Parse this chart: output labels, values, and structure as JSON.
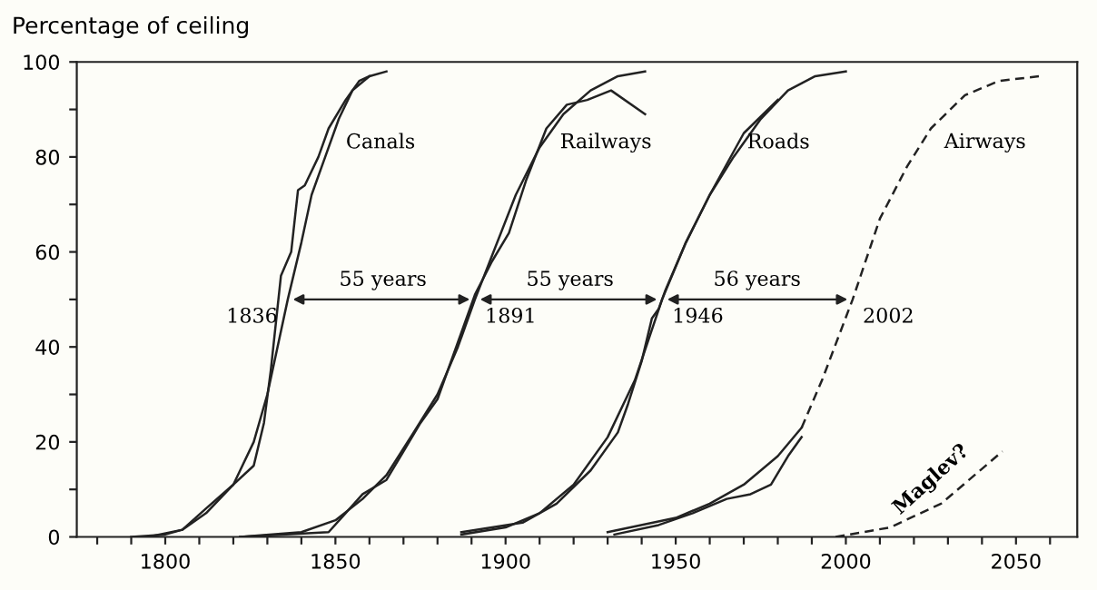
{
  "chart_data": {
    "type": "line",
    "ylabel": "Percentage of ceiling",
    "xlim": [
      1774,
      2068
    ],
    "ylim": [
      0,
      100
    ],
    "xticks": [
      {
        "value": 1780,
        "label": null
      },
      {
        "value": 1790,
        "label": null
      },
      1800,
      {
        "value": 1810,
        "label": null
      },
      {
        "value": 1820,
        "label": null
      },
      {
        "value": 1830,
        "label": null
      },
      {
        "value": 1840,
        "label": null
      },
      1850,
      {
        "value": 1860,
        "label": null
      },
      {
        "value": 1870,
        "label": null
      },
      {
        "value": 1880,
        "label": null
      },
      {
        "value": 1890,
        "label": null
      },
      1900,
      {
        "value": 1910,
        "label": null
      },
      {
        "value": 1920,
        "label": null
      },
      {
        "value": 1930,
        "label": null
      },
      {
        "value": 1940,
        "label": null
      },
      1950,
      {
        "value": 1960,
        "label": null
      },
      {
        "value": 1970,
        "label": null
      },
      {
        "value": 1980,
        "label": null
      },
      {
        "value": 1990,
        "label": null
      },
      2000,
      {
        "value": 2010,
        "label": null
      },
      {
        "value": 2020,
        "label": null
      },
      {
        "value": 2030,
        "label": null
      },
      {
        "value": 2040,
        "label": null
      },
      2050,
      {
        "value": 2060,
        "label": null
      }
    ],
    "yticks": [
      0,
      {
        "value": 10,
        "label": null
      },
      20,
      {
        "value": 30,
        "label": null
      },
      40,
      {
        "value": 50,
        "label": null
      },
      60,
      {
        "value": 70,
        "label": null
      },
      80,
      {
        "value": 90,
        "label": null
      },
      100
    ],
    "grid": false,
    "legend": false,
    "marker": "none",
    "line_style": "solid",
    "series": [
      {
        "color": "#222222",
        "x": [
          1790,
          1800,
          1805,
          1812,
          1820,
          1826,
          1830,
          1833,
          1836,
          1840,
          1843,
          1847,
          1851,
          1855,
          1860,
          1865
        ],
        "values": [
          0,
          0.5,
          1.5,
          5,
          11,
          20,
          30,
          40,
          50,
          62,
          72,
          80,
          88,
          94,
          97,
          98
        ]
      },
      {
        "color": "#222222",
        "x": [
          1795,
          1805,
          1812,
          1820,
          1826,
          1829,
          1831,
          1834,
          1837,
          1839,
          1841,
          1845,
          1848,
          1853,
          1857,
          1860
        ],
        "values": [
          0,
          1.5,
          6,
          11,
          15,
          24,
          35,
          55,
          60,
          73,
          74,
          80,
          86,
          92,
          96,
          97
        ]
      },
      {
        "color": "#222222",
        "x": [
          1822,
          1840,
          1850,
          1858,
          1865,
          1873,
          1880,
          1886,
          1891,
          1897,
          1903,
          1910,
          1917,
          1925,
          1933,
          1941
        ],
        "values": [
          0,
          1,
          3.5,
          8,
          13,
          22,
          30,
          40,
          50,
          61,
          72,
          82,
          89,
          94,
          97,
          98
        ]
      },
      {
        "color": "#222222",
        "x": [
          1822,
          1848,
          1853,
          1858,
          1865,
          1870,
          1875,
          1880,
          1886,
          1891,
          1896,
          1901,
          1906,
          1912,
          1918,
          1924,
          1931,
          1941
        ],
        "values": [
          0,
          1,
          5,
          9,
          12,
          18,
          24,
          29,
          41,
          51,
          58,
          64,
          75,
          86,
          91,
          92,
          94,
          89
        ]
      },
      {
        "color": "#222222",
        "x": [
          1887,
          1900,
          1910,
          1920,
          1930,
          1938,
          1946,
          1953,
          1960,
          1967,
          1975,
          1983,
          1991,
          2000
        ],
        "values": [
          0.5,
          2,
          5,
          11,
          21,
          33,
          50,
          62,
          72,
          80,
          88,
          94,
          97,
          98
        ]
      },
      {
        "color": "#222222",
        "x": [
          1887,
          1905,
          1915,
          1925,
          1933,
          1936,
          1940,
          1943,
          1945,
          1947,
          1953,
          1960,
          1970,
          1980
        ],
        "values": [
          1,
          3,
          7,
          14,
          22,
          28,
          37,
          46,
          48,
          52,
          62,
          72,
          85,
          92
        ]
      },
      {
        "color": "#222222",
        "x": [
          1930,
          1950,
          1960,
          1970,
          1980,
          1987
        ],
        "values": [
          1,
          4,
          7,
          11,
          17,
          23
        ]
      },
      {
        "color": "#222222",
        "x": [
          1932,
          1945,
          1955,
          1965,
          1972,
          1978,
          1983,
          1987
        ],
        "values": [
          0.5,
          2.5,
          5,
          8,
          9,
          11,
          17,
          21
        ]
      },
      {
        "color": "#222222",
        "line_style": "dashed",
        "x": [
          1987,
          1993,
          2002,
          2010,
          2018,
          2025,
          2035,
          2045,
          2057
        ],
        "values": [
          23,
          33,
          50,
          67,
          78,
          86,
          93,
          96,
          97
        ]
      },
      {
        "color": "#222222",
        "line_style": "dashed",
        "x": [
          1997,
          2013,
          2028,
          2046
        ],
        "values": [
          0,
          2,
          7,
          18
        ]
      }
    ],
    "annotations": [
      "Canals",
      "Railways",
      "Roads",
      "Airways",
      {
        "text": "1836",
        "x": 1836,
        "y": 50
      },
      {
        "text": "1891",
        "x": 1891,
        "y": 50
      },
      {
        "text": "1946",
        "x": 1946,
        "y": 50
      },
      {
        "text": "2002",
        "x": 2002,
        "y": 50
      },
      "55 years",
      "55 years",
      "56 years",
      "Maglev?"
    ]
  }
}
